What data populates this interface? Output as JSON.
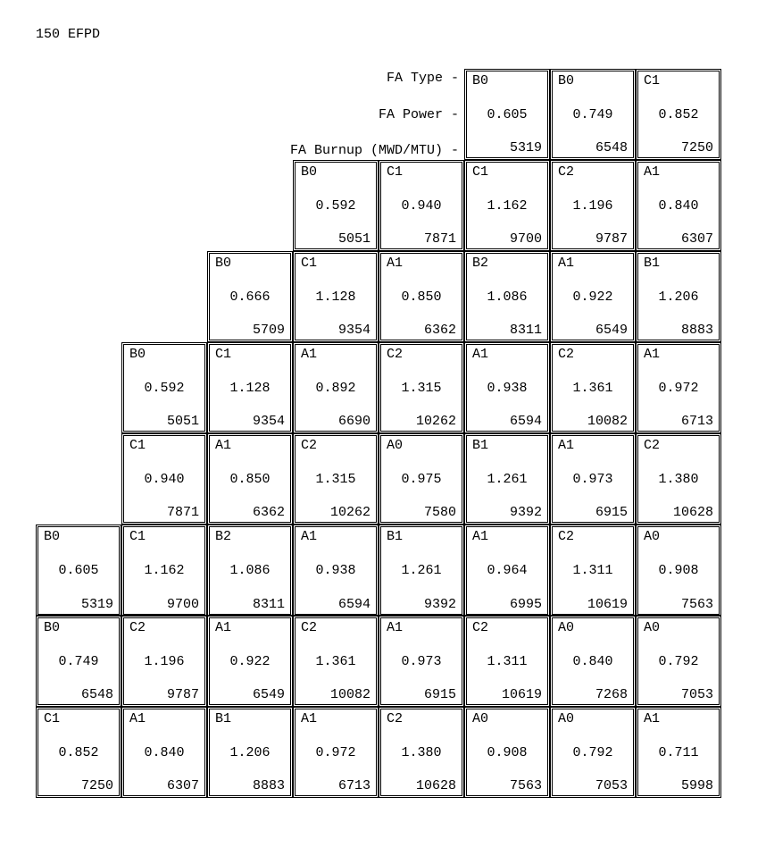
{
  "title": "150 EFPD",
  "labels": {
    "fa_type": "FA Type -",
    "fa_power": "FA Power -",
    "fa_burnup": "FA Burnup (MWD/MTU) -"
  },
  "layout": {
    "cols": 8,
    "rows": 8,
    "start_col": [
      5,
      3,
      2,
      1,
      1,
      0,
      0,
      0
    ],
    "thick_bottom_row": 5
  },
  "rows": [
    [
      {
        "fa": "B0",
        "pow": "0.605",
        "burn": "5319"
      },
      {
        "fa": "B0",
        "pow": "0.749",
        "burn": "6548"
      },
      {
        "fa": "C1",
        "pow": "0.852",
        "burn": "7250"
      }
    ],
    [
      {
        "fa": "B0",
        "pow": "0.592",
        "burn": "5051"
      },
      {
        "fa": "C1",
        "pow": "0.940",
        "burn": "7871"
      },
      {
        "fa": "C1",
        "pow": "1.162",
        "burn": "9700"
      },
      {
        "fa": "C2",
        "pow": "1.196",
        "burn": "9787"
      },
      {
        "fa": "A1",
        "pow": "0.840",
        "burn": "6307"
      }
    ],
    [
      {
        "fa": "B0",
        "pow": "0.666",
        "burn": "5709"
      },
      {
        "fa": "C1",
        "pow": "1.128",
        "burn": "9354"
      },
      {
        "fa": "A1",
        "pow": "0.850",
        "burn": "6362"
      },
      {
        "fa": "B2",
        "pow": "1.086",
        "burn": "8311"
      },
      {
        "fa": "A1",
        "pow": "0.922",
        "burn": "6549"
      },
      {
        "fa": "B1",
        "pow": "1.206",
        "burn": "8883"
      }
    ],
    [
      {
        "fa": "B0",
        "pow": "0.592",
        "burn": "5051"
      },
      {
        "fa": "C1",
        "pow": "1.128",
        "burn": "9354"
      },
      {
        "fa": "A1",
        "pow": "0.892",
        "burn": "6690"
      },
      {
        "fa": "C2",
        "pow": "1.315",
        "burn": "10262"
      },
      {
        "fa": "A1",
        "pow": "0.938",
        "burn": "6594"
      },
      {
        "fa": "C2",
        "pow": "1.361",
        "burn": "10082"
      },
      {
        "fa": "A1",
        "pow": "0.972",
        "burn": "6713"
      }
    ],
    [
      {
        "fa": "C1",
        "pow": "0.940",
        "burn": "7871"
      },
      {
        "fa": "A1",
        "pow": "0.850",
        "burn": "6362"
      },
      {
        "fa": "C2",
        "pow": "1.315",
        "burn": "10262"
      },
      {
        "fa": "A0",
        "pow": "0.975",
        "burn": "7580"
      },
      {
        "fa": "B1",
        "pow": "1.261",
        "burn": "9392"
      },
      {
        "fa": "A1",
        "pow": "0.973",
        "burn": "6915"
      },
      {
        "fa": "C2",
        "pow": "1.380",
        "burn": "10628"
      }
    ],
    [
      {
        "fa": "B0",
        "pow": "0.605",
        "burn": "5319"
      },
      {
        "fa": "C1",
        "pow": "1.162",
        "burn": "9700"
      },
      {
        "fa": "B2",
        "pow": "1.086",
        "burn": "8311"
      },
      {
        "fa": "A1",
        "pow": "0.938",
        "burn": "6594"
      },
      {
        "fa": "B1",
        "pow": "1.261",
        "burn": "9392"
      },
      {
        "fa": "A1",
        "pow": "0.964",
        "burn": "6995"
      },
      {
        "fa": "C2",
        "pow": "1.311",
        "burn": "10619"
      },
      {
        "fa": "A0",
        "pow": "0.908",
        "burn": "7563"
      }
    ],
    [
      {
        "fa": "B0",
        "pow": "0.749",
        "burn": "6548"
      },
      {
        "fa": "C2",
        "pow": "1.196",
        "burn": "9787"
      },
      {
        "fa": "A1",
        "pow": "0.922",
        "burn": "6549"
      },
      {
        "fa": "C2",
        "pow": "1.361",
        "burn": "10082"
      },
      {
        "fa": "A1",
        "pow": "0.973",
        "burn": "6915"
      },
      {
        "fa": "C2",
        "pow": "1.311",
        "burn": "10619"
      },
      {
        "fa": "A0",
        "pow": "0.840",
        "burn": "7268"
      },
      {
        "fa": "A0",
        "pow": "0.792",
        "burn": "7053"
      }
    ],
    [
      {
        "fa": "C1",
        "pow": "0.852",
        "burn": "7250"
      },
      {
        "fa": "A1",
        "pow": "0.840",
        "burn": "6307"
      },
      {
        "fa": "B1",
        "pow": "1.206",
        "burn": "8883"
      },
      {
        "fa": "A1",
        "pow": "0.972",
        "burn": "6713"
      },
      {
        "fa": "C2",
        "pow": "1.380",
        "burn": "10628"
      },
      {
        "fa": "A0",
        "pow": "0.908",
        "burn": "7563"
      },
      {
        "fa": "A0",
        "pow": "0.792",
        "burn": "7053"
      },
      {
        "fa": "A1",
        "pow": "0.711",
        "burn": "5998"
      }
    ]
  ]
}
